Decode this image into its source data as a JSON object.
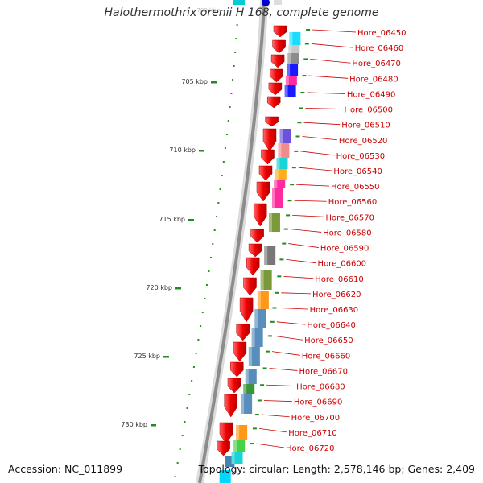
{
  "title": "Halothermothrix orenii H 168, complete genome",
  "accession_text": "Accession: NC_011899",
  "topology_text": "Topology: circular; Length: 2,578,146 bp; Genes: 2,409",
  "backbone_top_label": "700 kbp",
  "scale_labels": [
    "705 kbp",
    "710 kbp",
    "715 kbp",
    "720 kbp",
    "725 kbp",
    "730 kbp"
  ],
  "gene_labels": [
    "Hore_06450",
    "Hore_06460",
    "Hore_06470",
    "Hore_06480",
    "Hore_06490",
    "Hore_06500",
    "Hore_06510",
    "Hore_06520",
    "Hore_06530",
    "Hore_06540",
    "Hore_06550",
    "Hore_06560",
    "Hore_06570",
    "Hore_06580",
    "Hore_06590",
    "Hore_06600",
    "Hore_06610",
    "Hore_06620",
    "Hore_06630",
    "Hore_06640",
    "Hore_06650",
    "Hore_06660",
    "Hore_06670",
    "Hore_06680",
    "Hore_06690",
    "Hore_06700",
    "Hore_06710",
    "Hore_06720"
  ],
  "colors": {
    "gene_arrow": "#ee0000",
    "gene_label": "#cc0000",
    "scale_tick": "#228b22",
    "scale_dot": "#2e8b22",
    "backbone": "#8c8c8c",
    "label_line": "#cc0000"
  },
  "cog_colors": [
    "#00d8ff",
    "#c0c0c0",
    "#808080",
    "#0000ff",
    "#ff1493",
    "#0000ff",
    "#ffffff",
    "#5a3fd9",
    "#f08080",
    "#00ced1",
    "#ffa500",
    "#ff1493",
    "#ff1493",
    "#6b8e23",
    "#696969",
    "#6b8e23",
    "#ff8c00",
    "#4682b4",
    "#4682b4",
    "#4682b4",
    "#4682b4",
    "#228b22",
    "#4682b4",
    "#ff8c00",
    "#32cd32",
    "#00ced1"
  ]
}
